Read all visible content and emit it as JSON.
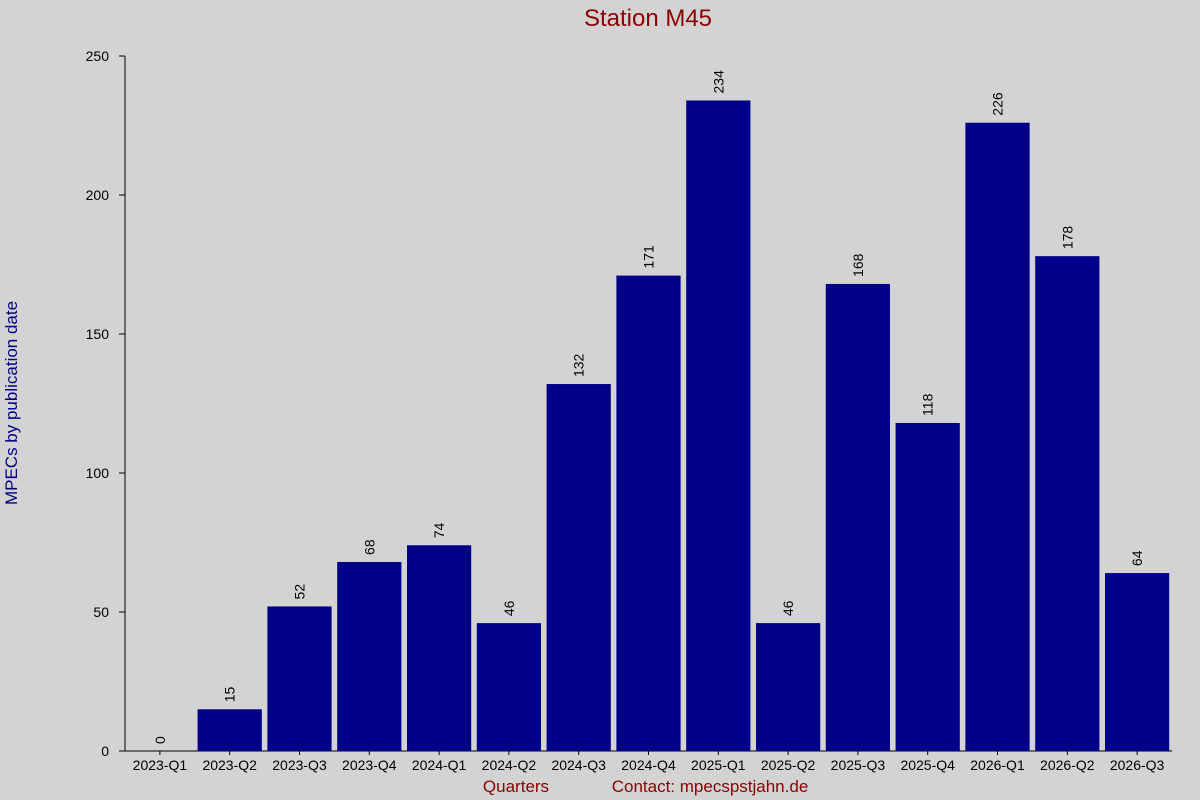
{
  "chart_data": {
    "type": "bar",
    "title": "Station M45",
    "y_label": "MPECs by publication date",
    "x_label": "Quarters",
    "contact": "Contact: mpecspstjahn.de",
    "categories": [
      "2023-Q1",
      "2023-Q2",
      "2023-Q3",
      "2023-Q4",
      "2024-Q1",
      "2024-Q2",
      "2024-Q3",
      "2024-Q4",
      "2025-Q1",
      "2025-Q2",
      "2025-Q3",
      "2025-Q4",
      "2026-Q1",
      "2026-Q2",
      "2026-Q3"
    ],
    "values": [
      0,
      15,
      52,
      68,
      74,
      46,
      132,
      171,
      234,
      46,
      168,
      118,
      226,
      178,
      64
    ],
    "color": "#000088",
    "ylim": [
      0,
      250
    ],
    "yticks": [
      0,
      50,
      100,
      150,
      200,
      250
    ]
  }
}
